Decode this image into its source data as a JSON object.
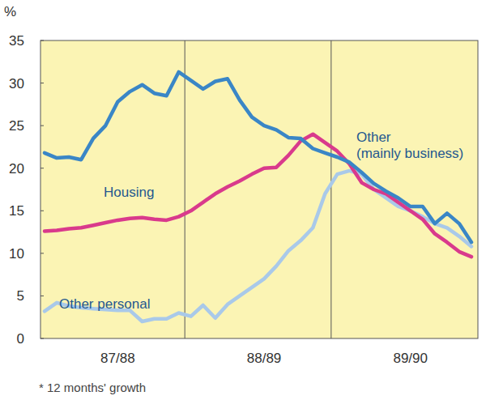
{
  "chart_data": {
    "type": "line",
    "y_label": "%",
    "annotations": [
      "* 12 months' growth"
    ],
    "categories": [
      null,
      null,
      null,
      null,
      null,
      null,
      "87/88",
      null,
      null,
      null,
      null,
      null,
      null,
      null,
      null,
      null,
      null,
      null,
      "88/89",
      null,
      null,
      null,
      null,
      null,
      null,
      null,
      null,
      null,
      null,
      null,
      "89/90",
      null,
      null,
      null,
      null,
      null
    ],
    "ylim": [
      0,
      35
    ],
    "yticks": [
      0,
      5,
      10,
      15,
      20,
      25,
      30,
      35
    ],
    "grid": true,
    "series": [
      {
        "name": "Other (mainly business)",
        "color": "#3a86c6",
        "values": [
          21.8,
          21.2,
          21.3,
          21.0,
          23.5,
          25.0,
          27.8,
          29.0,
          29.8,
          28.8,
          28.5,
          31.3,
          30.3,
          29.3,
          30.2,
          30.5,
          28.0,
          26.0,
          25.0,
          24.5,
          23.6,
          23.5,
          22.3,
          21.8,
          21.3,
          20.7,
          19.5,
          18.2,
          17.3,
          16.5,
          15.5,
          15.5,
          13.5,
          14.7,
          13.5,
          11.3
        ]
      },
      {
        "name": "Housing",
        "color": "#d93a8c",
        "values": [
          12.6,
          12.7,
          12.9,
          13.0,
          13.3,
          13.6,
          13.9,
          14.1,
          14.2,
          14.0,
          13.9,
          14.3,
          15.0,
          16.0,
          17.0,
          17.8,
          18.5,
          19.3,
          20.0,
          20.1,
          21.5,
          23.2,
          24.0,
          23.0,
          22.0,
          20.5,
          18.3,
          17.5,
          17.0,
          16.0,
          15.0,
          14.0,
          12.3,
          11.3,
          10.2,
          9.6
        ]
      },
      {
        "name": "Other personal",
        "color": "#a9c9e9",
        "values": [
          3.2,
          4.2,
          3.8,
          3.6,
          3.5,
          3.4,
          3.3,
          3.3,
          2.0,
          2.3,
          2.3,
          3.0,
          2.6,
          3.9,
          2.4,
          4.0,
          5.0,
          6.0,
          7.0,
          8.5,
          10.3,
          11.5,
          13.0,
          17.0,
          19.3,
          19.7,
          19.3,
          17.5,
          16.5,
          15.5,
          15.0,
          14.3,
          13.5,
          13.0,
          12.0,
          10.8
        ]
      }
    ]
  }
}
